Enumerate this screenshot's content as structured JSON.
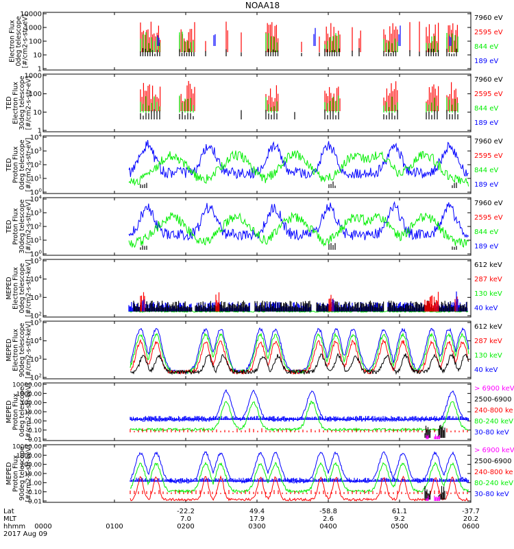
{
  "title": "NOAA18",
  "date": "2017 Aug 09",
  "colors": {
    "black": "#000000",
    "red": "#ff0000",
    "green": "#00ee00",
    "blue": "#0000ff",
    "magenta": "#ff00ff"
  },
  "footer": {
    "row_labels": [
      "Lat",
      "MLT",
      "hhmm"
    ],
    "columns": [
      {
        "hhmm": "0000",
        "mlt": "",
        "lat": ""
      },
      {
        "hhmm": "0100",
        "mlt": "",
        "lat": ""
      },
      {
        "hhmm": "0200",
        "mlt": "7.0",
        "lat": "-22.2"
      },
      {
        "hhmm": "0300",
        "mlt": "17.9",
        "lat": "49.4"
      },
      {
        "hhmm": "0400",
        "mlt": "2.6",
        "lat": "-58.8"
      },
      {
        "hhmm": "0500",
        "mlt": "9.2",
        "lat": "61.1"
      },
      {
        "hhmm": "0600",
        "mlt": "20.2",
        "lat": "-37.7"
      }
    ]
  },
  "chart_data": [
    {
      "type": "line",
      "ylabel": [
        "Electron Flux",
        "0deg telescope",
        "[#/cm2-s-str-eV]"
      ],
      "scale": "log",
      "ylim": [
        1,
        10000
      ],
      "yticks": [
        "1",
        "10",
        "100",
        "1000",
        "10000"
      ],
      "x_range": [
        "0000",
        "0600"
      ],
      "legend": [
        {
          "text": "7960 eV",
          "color": "black"
        },
        {
          "text": "2595 eV",
          "color": "red"
        },
        {
          "text": "844 eV",
          "color": "green"
        },
        {
          "text": "189 eV",
          "color": "blue"
        }
      ],
      "series": [
        {
          "name": "7960 eV",
          "color": "black",
          "values": []
        },
        {
          "name": "2595 eV",
          "color": "red",
          "values": []
        },
        {
          "name": "844 eV",
          "color": "green",
          "values": []
        },
        {
          "name": "189 eV",
          "color": "blue",
          "values": []
        }
      ]
    },
    {
      "type": "line",
      "ylabel": [
        "TED",
        "Electron Flux",
        "30deg telescope",
        "[#/cm2-s-str-eV]"
      ],
      "scale": "log",
      "ylim": [
        1,
        1000
      ],
      "yticks": [
        "1",
        "10",
        "100",
        "1000"
      ],
      "legend": [
        {
          "text": "7960 eV",
          "color": "black"
        },
        {
          "text": "2595 eV",
          "color": "red"
        },
        {
          "text": "844 eV",
          "color": "green"
        },
        {
          "text": "189 eV",
          "color": "blue"
        }
      ],
      "series": []
    },
    {
      "type": "line",
      "ylabel": [
        "TED",
        "Proton Flux",
        "0deg telescope",
        "[#/cm2-s-str-eV]"
      ],
      "scale": "log",
      "ylim": [
        1,
        10000
      ],
      "yticks": [
        "10^0",
        "10^1",
        "10^2",
        "10^3",
        "10^4"
      ],
      "legend": [
        {
          "text": "7960 eV",
          "color": "black"
        },
        {
          "text": "2595 eV",
          "color": "red"
        },
        {
          "text": "844 eV",
          "color": "green"
        },
        {
          "text": "189 eV",
          "color": "blue"
        }
      ],
      "series": []
    },
    {
      "type": "line",
      "ylabel": [
        "TED",
        "Proton Flux",
        "30deg telescope",
        "[#/cm2-s-str-eV]"
      ],
      "scale": "log",
      "ylim": [
        1,
        10000
      ],
      "yticks": [
        "10^0",
        "10^1",
        "10^2",
        "10^3",
        "10^4"
      ],
      "legend": [
        {
          "text": "7960 eV",
          "color": "black"
        },
        {
          "text": "2595 eV",
          "color": "red"
        },
        {
          "text": "844 eV",
          "color": "green"
        },
        {
          "text": "189 eV",
          "color": "blue"
        }
      ],
      "series": []
    },
    {
      "type": "line",
      "ylabel": [
        "MEPED",
        "Electron Flux",
        "0deg telescope",
        "[#/cm2-s-str-keV]"
      ],
      "scale": "log",
      "ylim": [
        100,
        100000
      ],
      "yticks": [
        "10^2",
        "10^3",
        "10^4",
        "10^5"
      ],
      "legend": [
        {
          "text": "612 keV",
          "color": "black"
        },
        {
          "text": "287 keV",
          "color": "red"
        },
        {
          "text": "130 keV",
          "color": "green"
        },
        {
          "text": "40 keV",
          "color": "blue"
        }
      ],
      "series": []
    },
    {
      "type": "line",
      "ylabel": [
        "MEPED",
        "Electron Flux",
        "90deg telescope",
        "[#/cm2-s-str-keV]"
      ],
      "scale": "log",
      "ylim": [
        100,
        100000
      ],
      "yticks": [
        "10^2",
        "10^3",
        "10^4",
        "10^5"
      ],
      "legend": [
        {
          "text": "612 keV",
          "color": "black"
        },
        {
          "text": "287 keV",
          "color": "red"
        },
        {
          "text": "130 keV",
          "color": "green"
        },
        {
          "text": "40 keV",
          "color": "blue"
        }
      ],
      "series": []
    },
    {
      "type": "line",
      "ylabel": [
        "MEPED",
        "Proton Flux",
        "0deg telescope",
        "[#/cm2-s-str-keV]"
      ],
      "scale": "log",
      "ylim": [
        0.01,
        10000
      ],
      "yticks": [
        "0.01",
        "0.10",
        "1.00",
        "10.00",
        "100.00",
        "1000.00",
        "10000.00"
      ],
      "legend": [
        {
          "text": "> 6900 keV",
          "color": "magenta"
        },
        {
          "text": "2500-6900",
          "color": "black"
        },
        {
          "text": "240-800 ke",
          "color": "red"
        },
        {
          "text": "80-240 keV",
          "color": "green"
        },
        {
          "text": "30-80 keV",
          "color": "blue"
        }
      ],
      "series": []
    },
    {
      "type": "line",
      "ylabel": [
        "MEPED",
        "Proton Flux",
        "90deg telescope",
        "[#/cm2-s-str-keV]"
      ],
      "scale": "log",
      "ylim": [
        0.01,
        10000
      ],
      "yticks": [
        "0.01",
        "0.10",
        "1.00",
        "10.00",
        "100.00",
        "1000.00",
        "10000.00"
      ],
      "legend": [
        {
          "text": "> 6900 keV",
          "color": "magenta"
        },
        {
          "text": "2500-6900",
          "color": "black"
        },
        {
          "text": "240-800 ke",
          "color": "red"
        },
        {
          "text": "80-240 keV",
          "color": "green"
        },
        {
          "text": "30-80 keV",
          "color": "blue"
        }
      ],
      "series": []
    }
  ]
}
